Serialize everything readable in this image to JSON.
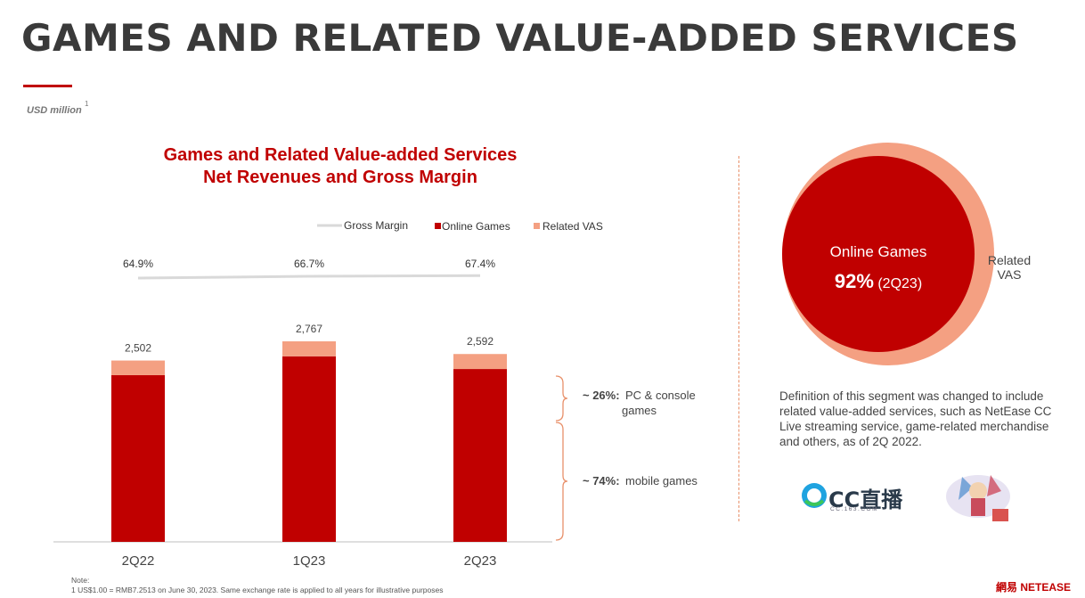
{
  "page": {
    "title": "GAMES AND RELATED VALUE-ADDED SERVICES",
    "unit": "USD million",
    "unit_footnote": "1"
  },
  "chart_data": {
    "type": "bar",
    "title_line1": "Games and Related Value-added Services",
    "title_line2": "Net Revenues and Gross Margin",
    "categories": [
      "2Q22",
      "1Q23",
      "2Q23"
    ],
    "series": [
      {
        "name": "Online Games",
        "color": "#c00000",
        "values": [
          2300,
          2560,
          2385
        ]
      },
      {
        "name": "Related VAS",
        "color": "#f4a082",
        "values": [
          202,
          207,
          207
        ]
      }
    ],
    "totals": [
      2502,
      2767,
      2592
    ],
    "total_labels": [
      "2,502",
      "2,767",
      "2,592"
    ],
    "gross_margin": {
      "name": "Gross Margin",
      "color": "#d9d9d9",
      "values": [
        64.9,
        66.7,
        67.4
      ],
      "labels": [
        "64.9%",
        "66.7%",
        "67.4%"
      ]
    },
    "ylim": [
      0,
      3000
    ],
    "legend_position": "top",
    "annotations": [
      {
        "pct": "~ 26%:",
        "text": "PC & console games"
      },
      {
        "pct": "~ 74%:",
        "text": "mobile games"
      }
    ]
  },
  "side": {
    "online_games_label": "Online Games",
    "online_games_pct": "92%",
    "online_games_period": "(2Q23)",
    "related_vas_label_line1": "Related",
    "related_vas_label_line2": "VAS",
    "definition": "Definition of this segment was changed to include related value-added services, such as NetEase CC Live streaming service, game-related merchandise and others, as of 2Q 2022.",
    "cc_logo_text": "CC直播",
    "cc_logo_sub": "CC.163.COM"
  },
  "footer": {
    "note_label": "Note:",
    "note_1": "1    US$1.00 = RMB7.2513 on June 30, 2023. Same exchange rate is applied to all years for illustrative purposes",
    "brand": "網易 NETEASE"
  },
  "colors": {
    "brand_red": "#c00000",
    "vas_salmon": "#f4a082",
    "divider": "#e8906a"
  }
}
